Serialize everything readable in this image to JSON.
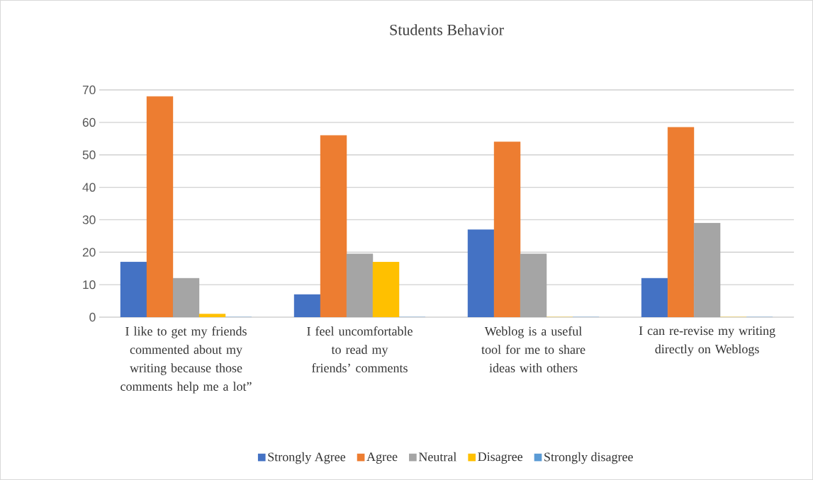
{
  "chart_data": {
    "type": "bar",
    "title": "Students Behavior",
    "categories": [
      "I like to get my friends commented about my writing because those comments help me a lot”",
      "I feel uncomfortable to read my friends’ comments",
      "Weblog is a useful tool for me to share ideas with others",
      "I can re-revise my writing directly on Weblogs"
    ],
    "series": [
      {
        "name": "Strongly Agree",
        "color": "#4472c4",
        "values": [
          17,
          7,
          27,
          12
        ]
      },
      {
        "name": "Agree",
        "color": "#ed7d31",
        "values": [
          68,
          56,
          54,
          58.5
        ]
      },
      {
        "name": "Neutral",
        "color": "#a5a5a5",
        "values": [
          12,
          19.5,
          19.5,
          29
        ]
      },
      {
        "name": "Disagree",
        "color": "#ffc000",
        "values": [
          1,
          17,
          0,
          0
        ]
      },
      {
        "name": "Strongly disagree",
        "color": "#5b9bd5",
        "values": [
          0,
          0,
          0,
          0
        ]
      }
    ],
    "ylim": [
      0,
      70
    ],
    "yticks": [
      0,
      10,
      20,
      30,
      40,
      50,
      60,
      70
    ],
    "grid": "y",
    "legend": "bottom"
  }
}
